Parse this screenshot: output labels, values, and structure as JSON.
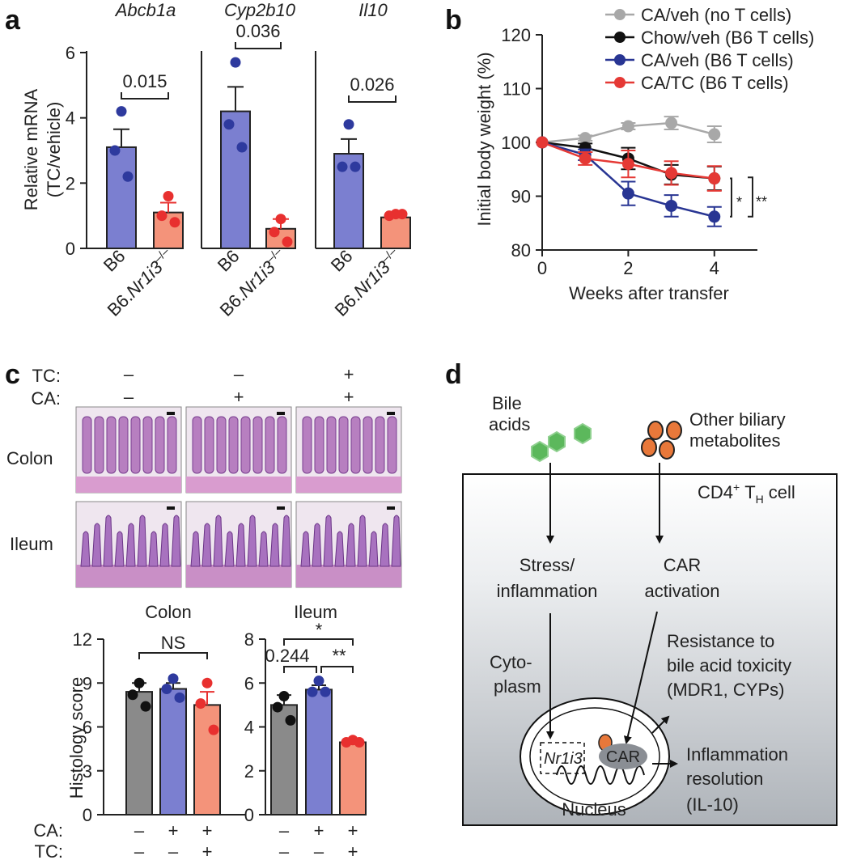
{
  "panels": {
    "a": "a",
    "b": "b",
    "c": "c",
    "d": "d"
  },
  "chart_data": [
    {
      "id": "a",
      "type": "bar",
      "ylabel": "Relative mRNA (TC/vehicle)",
      "ylabel_lines": [
        "Relative mRNA",
        "(TC/vehicle)"
      ],
      "ylim": [
        0,
        6
      ],
      "yticks": [
        "0",
        "2",
        "4",
        "6"
      ],
      "categories": [
        "B6",
        "B6.Nr1i3–/–"
      ],
      "category_main": "B6.",
      "category_italic": "Nr1i3",
      "category_sup": "–/–",
      "colors": {
        "B6": "#7b7fd0",
        "KO": "#f4937a",
        "B6_dot": "#2e3a9e",
        "KO_dot": "#e8302f"
      },
      "groups": [
        {
          "gene": "Abcb1a",
          "values": [
            3.1,
            1.1
          ],
          "errors": [
            0.55,
            0.3
          ],
          "points": [
            [
              4.2,
              3.0,
              2.2
            ],
            [
              1.6,
              1.0,
              0.8
            ]
          ],
          "p": "0.015"
        },
        {
          "gene": "Cyp2b10",
          "values": [
            4.2,
            0.6
          ],
          "errors": [
            0.75,
            0.3
          ],
          "points": [
            [
              5.7,
              3.8,
              3.1
            ],
            [
              0.9,
              0.5,
              0.2
            ]
          ],
          "p": "0.036"
        },
        {
          "gene": "Il10",
          "values": [
            2.9,
            0.95
          ],
          "errors": [
            0.45,
            0.06
          ],
          "points": [
            [
              3.8,
              2.5,
              2.5
            ],
            [
              1.05,
              1.0,
              1.05
            ]
          ],
          "p": "0.026"
        }
      ]
    },
    {
      "id": "b",
      "type": "line",
      "xlabel": "Weeks after transfer",
      "ylabel": "Initial body weight (%)",
      "xlim": [
        0,
        5
      ],
      "ylim": [
        80,
        120
      ],
      "xticks": [
        "0",
        "2",
        "4"
      ],
      "yticks": [
        "80",
        "90",
        "100",
        "110",
        "120"
      ],
      "legend_position": "top",
      "series": [
        {
          "name": "CA/veh (no T cells)",
          "color": "#a8a8a8",
          "x": [
            0,
            1,
            2,
            3,
            4
          ],
          "values": [
            100,
            100.8,
            103.0,
            103.6,
            101.5
          ],
          "errors": [
            0,
            0.5,
            0.6,
            1.2,
            1.5
          ]
        },
        {
          "name": "Chow/veh (B6 T cells)",
          "color": "#111111",
          "x": [
            0,
            1,
            2,
            3,
            4
          ],
          "values": [
            100,
            99.0,
            97.0,
            94.0,
            93.3
          ],
          "errors": [
            0,
            0.8,
            2.0,
            1.8,
            2.2
          ]
        },
        {
          "name": "CA/veh (B6 T cells)",
          "color": "#283593",
          "x": [
            0,
            1,
            2,
            3,
            4
          ],
          "values": [
            100,
            97.7,
            90.5,
            88.2,
            86.2
          ],
          "errors": [
            0,
            1.0,
            2.2,
            2.0,
            1.8
          ]
        },
        {
          "name": "CA/TC (B6 T cells)",
          "color": "#e53935",
          "x": [
            0,
            1,
            2,
            3,
            4
          ],
          "values": [
            100,
            97.0,
            96.0,
            94.3,
            93.3
          ],
          "errors": [
            0,
            1.2,
            2.5,
            2.2,
            2.3
          ]
        }
      ],
      "significance": [
        "*",
        "**"
      ]
    },
    {
      "id": "c",
      "type": "bar",
      "ylabel": "Histology score",
      "treatment_labels": {
        "tc": "TC:",
        "ca": "CA:"
      },
      "image_header": {
        "tc": [
          "–",
          "–",
          "+"
        ],
        "ca": [
          "–",
          "+",
          "+"
        ]
      },
      "row_labels": [
        "Colon",
        "Ileum"
      ],
      "colors": [
        "#8a8a8a",
        "#7b7fd0",
        "#f4937a"
      ],
      "dot_colors": [
        "#111111",
        "#2e3a9e",
        "#e8302f"
      ],
      "axis_treatments": {
        "ca": [
          "–",
          "+",
          "+"
        ],
        "tc": [
          "–",
          "–",
          "+"
        ]
      },
      "subplots": [
        {
          "title": "Colon",
          "ylim": [
            0,
            12
          ],
          "yticks": [
            "0",
            "3",
            "6",
            "9",
            "12"
          ],
          "values": [
            8.4,
            8.6,
            7.5
          ],
          "errors": [
            0.6,
            0.4,
            0.9
          ],
          "points": [
            [
              9.0,
              8.2,
              7.4
            ],
            [
              9.3,
              8.6,
              8.0
            ],
            [
              9.0,
              7.6,
              5.8
            ]
          ],
          "annotations": [
            "NS"
          ]
        },
        {
          "title": "Ileum",
          "ylim": [
            0,
            8
          ],
          "yticks": [
            "0",
            "2",
            "4",
            "6",
            "8"
          ],
          "values": [
            5.0,
            5.7,
            3.3
          ],
          "errors": [
            0.45,
            0.2,
            0.05
          ],
          "points": [
            [
              5.4,
              4.9,
              4.3
            ],
            [
              6.1,
              5.6,
              5.6
            ],
            [
              3.4,
              3.3,
              3.3
            ]
          ],
          "annotations": [
            "*",
            "0.244",
            "**"
          ]
        }
      ]
    }
  ],
  "diagram_d": {
    "bile_acids": "Bile acids",
    "bile_lines": [
      "Bile",
      "acids"
    ],
    "other_metabolites": "Other biliary metabolites",
    "other_lines": [
      "Other biliary",
      "metabolites"
    ],
    "cell_label": "CD4+ TH cell",
    "cell_main": "CD4",
    "cell_sup": "+",
    "cell_t": "T",
    "cell_sub": "H",
    "cell_tail": "cell",
    "stress": [
      "Stress/",
      "inflammation"
    ],
    "car_activation": [
      "CAR",
      "activation"
    ],
    "cytoplasm": [
      "Cyto-",
      "plasm"
    ],
    "resistance": [
      "Resistance to",
      "bile acid toxicity",
      "(MDR1, CYPs)"
    ],
    "nr1i3": "Nr1i3",
    "car": "CAR",
    "inflammation_resolution": [
      "Inflammation",
      "resolution",
      "(IL-10)"
    ],
    "nucleus": "Nucleus",
    "hex_color": "#5cb85c",
    "ellipse_color": "#e8783a"
  },
  "micrographs": {
    "colon_color": "#b77fc0",
    "ileum_color": "#a872bf",
    "bg": "#efe6ef"
  }
}
